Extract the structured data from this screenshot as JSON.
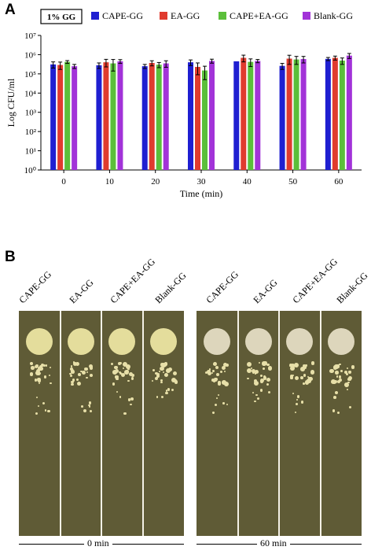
{
  "panel_a_label": "A",
  "panel_b_label": "B",
  "chart_data": {
    "type": "bar",
    "annotation": "1% GG",
    "ylabel": "Log CFU/ml",
    "xlabel": "Time (min)",
    "yscale": "log",
    "ylim": [
      1,
      10000000
    ],
    "yticks": [
      "10⁰",
      "10¹",
      "10²",
      "10³",
      "10⁴",
      "10⁵",
      "10⁶",
      "10⁷"
    ],
    "categories": [
      "0",
      "10",
      "20",
      "30",
      "40",
      "50",
      "60"
    ],
    "legend_position": "top",
    "series": [
      {
        "name": "CAPE-GG",
        "color": "#1f1fd1",
        "values": [
          310000,
          280000,
          250000,
          400000,
          450000,
          260000,
          600000
        ],
        "errors": [
          110000,
          90000,
          60000,
          130000,
          0,
          90000,
          110000
        ]
      },
      {
        "name": "EA-GG",
        "color": "#e03b2e",
        "values": [
          290000,
          400000,
          370000,
          230000,
          680000,
          620000,
          680000
        ],
        "errors": [
          120000,
          170000,
          110000,
          140000,
          260000,
          310000,
          160000
        ]
      },
      {
        "name": "CAPE+EA-GG",
        "color": "#5bbf3a",
        "values": [
          420000,
          350000,
          300000,
          150000,
          420000,
          560000,
          490000
        ],
        "errors": [
          70000,
          210000,
          90000,
          100000,
          180000,
          250000,
          180000
        ]
      },
      {
        "name": "Blank-GG",
        "color": "#a233d8",
        "values": [
          250000,
          450000,
          350000,
          470000,
          470000,
          590000,
          890000
        ],
        "errors": [
          60000,
          100000,
          130000,
          110000,
          90000,
          220000,
          260000
        ]
      }
    ]
  },
  "plates": {
    "lane_labels": [
      "CAPE-GG",
      "EA-GG",
      "CAPE+EA-GG",
      "Blank-GG"
    ],
    "groups": [
      {
        "label": "0 min"
      },
      {
        "label": "60 min"
      }
    ]
  }
}
